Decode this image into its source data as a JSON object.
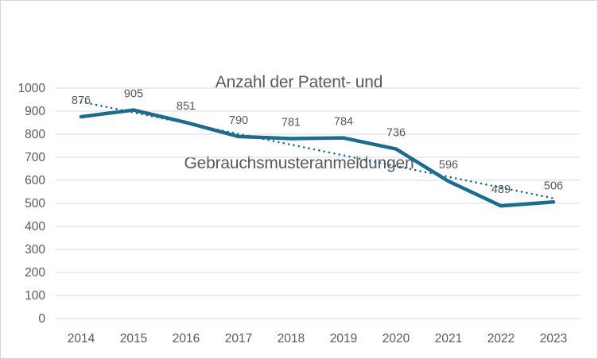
{
  "chart": {
    "title_lines": [
      "Anzahl der Patent- und",
      "Gebrauchsmusteranmeldungen"
    ]
  },
  "chart_data": {
    "type": "line",
    "title": "Anzahl der Patent- und Gebrauchsmusteranmeldungen",
    "categories": [
      "2014",
      "2015",
      "2016",
      "2017",
      "2018",
      "2019",
      "2020",
      "2021",
      "2022",
      "2023"
    ],
    "series": [
      {
        "name": "Anzahl der Patent- und Gebrauchsmusteranmeldungen",
        "values": [
          876,
          905,
          851,
          790,
          781,
          784,
          736,
          596,
          489,
          506
        ]
      }
    ],
    "data_labels": [
      "876",
      "905",
      "851",
      "790",
      "781",
      "784",
      "736",
      "596",
      "489",
      "506"
    ],
    "trendline": {
      "type": "linear",
      "style": "dotted",
      "start_value": 941,
      "end_value": 522
    },
    "xlabel": "",
    "ylabel": "",
    "ylim": [
      0,
      1000
    ],
    "ytick_step": 100,
    "grid": "horizontal",
    "legend": "none",
    "colors": {
      "series_line": "#1E6C8D",
      "trendline": "#1E6C8D",
      "gridline": "#D9D9D9",
      "axis_text": "#595959",
      "title_text": "#595959",
      "data_label_text": "#595959",
      "frame_border": "#D6D6D6",
      "background": "#FFFFFF"
    }
  }
}
